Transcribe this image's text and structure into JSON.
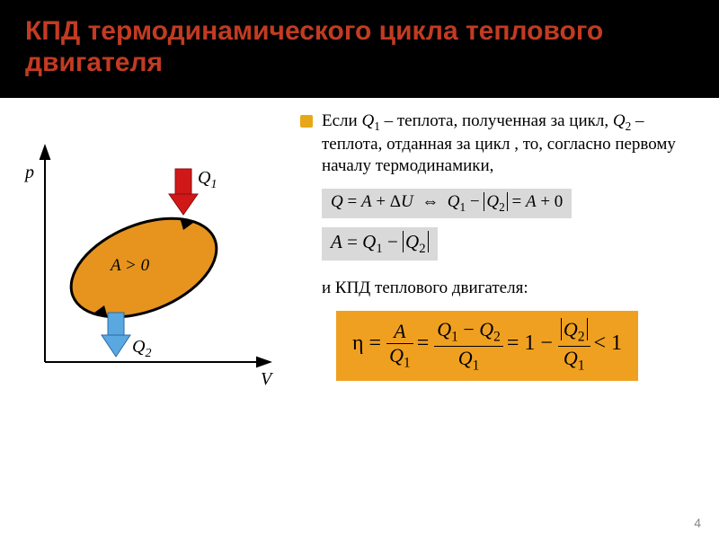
{
  "title": {
    "text": "КПД термодинамического цикла теплового двигателя",
    "color": "#c23b22",
    "fontsize": 30
  },
  "bullet_color": "#e6a817",
  "paragraph": {
    "pre": "Если ",
    "q1": "Q",
    "q1_sub": "1",
    "mid1": " – теплота, полученная за цикл, ",
    "q2": "Q",
    "q2_sub": "2",
    "mid2": " – теплота, отданная за цикл , то, согласно первому началу термодинамики,"
  },
  "eq_box_bg": "#d9d9d9",
  "eq1_text": "Q = A + ΔU ⇔ Q₁ − |Q₂| = A + 0",
  "eq2_text": "A = Q₁ − |Q₂|",
  "kpd_line": "и КПД теплового двигателя:",
  "highlight_bg": "#f0a020",
  "eta_eq": {
    "eta": "η",
    "A": "A",
    "Q1": "Q",
    "sub1": "1",
    "Q2": "Q",
    "sub2": "2",
    "tail": " < 1"
  },
  "diagram": {
    "axis_p": "p",
    "axis_v": "V",
    "Q1_label": "Q",
    "Q1_sub": "1",
    "Q2_label": "Q",
    "Q2_sub": "2",
    "A_label": "A > 0",
    "ellipse_fill": "#e6941e",
    "ellipse_stroke": "#000000",
    "arrow_q1_fill": "#d01818",
    "arrow_q2_fill": "#5aa8e0",
    "axis_color": "#000000"
  },
  "page_number": "4"
}
